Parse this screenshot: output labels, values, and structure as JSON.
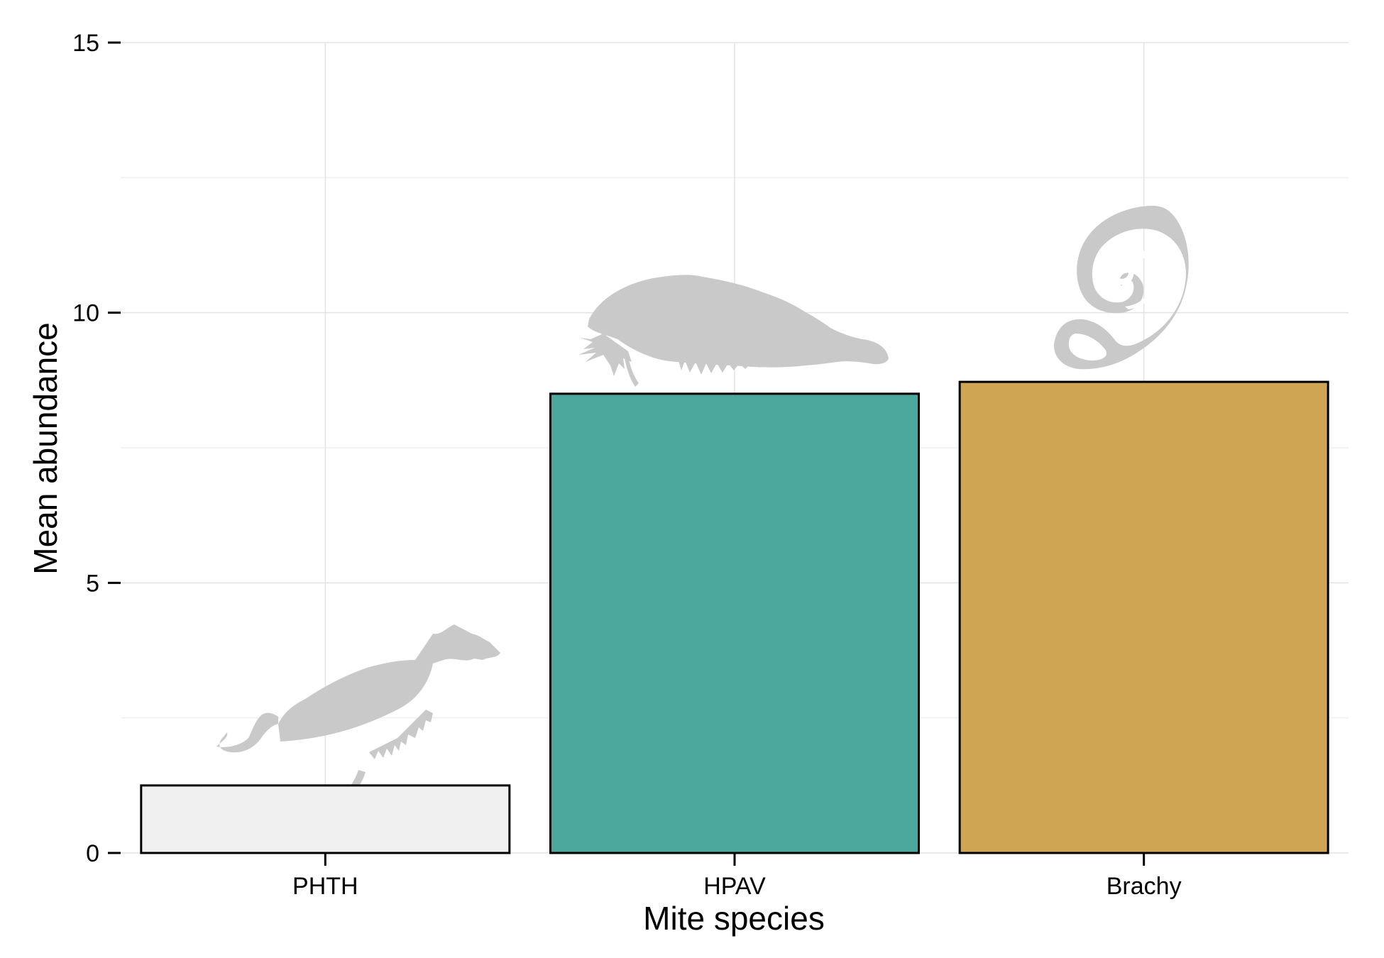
{
  "chart_data": {
    "type": "bar",
    "categories": [
      "PHTH",
      "HPAV",
      "Brachy"
    ],
    "values": [
      1.25,
      8.5,
      8.72
    ],
    "xlabel": "Mite species",
    "ylabel": "Mean abundance",
    "ylim": [
      0,
      15
    ],
    "yticks": [
      "0",
      "5",
      "10",
      "15"
    ],
    "bar_colors": [
      "#f0f0f0",
      "#4ca89c",
      "#cfa553"
    ],
    "bar_outline": "#000000",
    "grid": true,
    "legend": "none",
    "silhouettes": [
      "mite-silhouette-icon",
      "mite-silhouette-icon",
      "spiral-silhouette-icon"
    ]
  }
}
